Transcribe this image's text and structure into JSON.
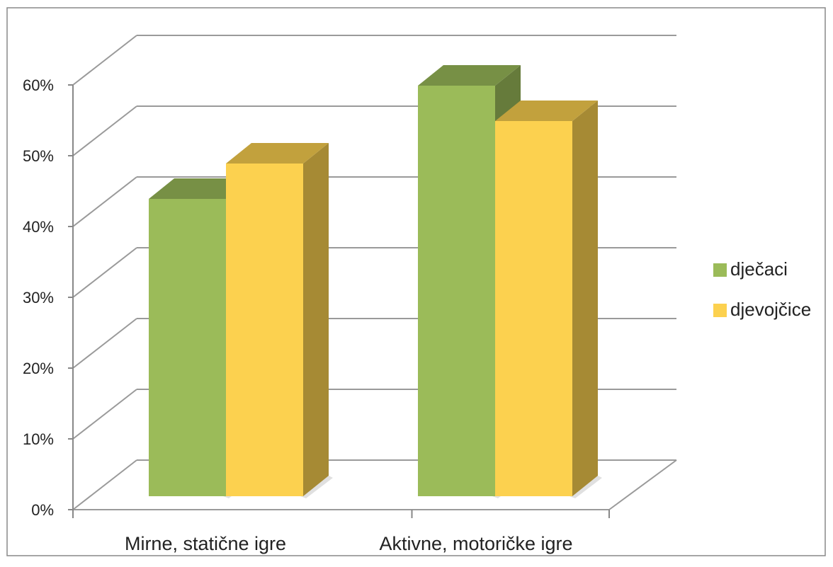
{
  "chart_data": {
    "type": "bar",
    "title": "",
    "xlabel": "",
    "ylabel": "",
    "categories": [
      "Mirne, statične igre",
      "Aktivne, motoričke igre"
    ],
    "series": [
      {
        "name": "dječaci",
        "values": [
          42,
          58
        ],
        "color": "#9BBB59"
      },
      {
        "name": "djevojčice",
        "values": [
          47,
          53
        ],
        "color": "#FCD14F"
      }
    ],
    "ylim": [
      0,
      60
    ],
    "y_ticks": [
      "0%",
      "10%",
      "20%",
      "30%",
      "40%",
      "50%",
      "60%"
    ],
    "grid": true,
    "legend_position": "right",
    "style": "3d-clustered-column"
  }
}
